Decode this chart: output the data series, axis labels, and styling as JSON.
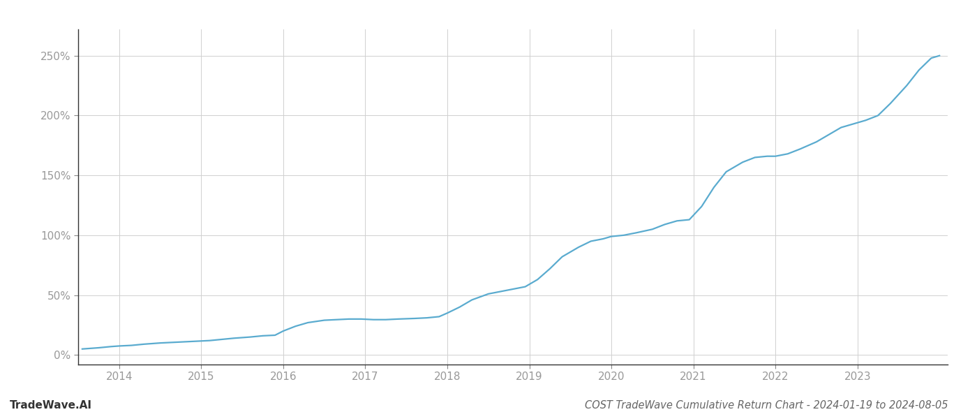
{
  "title": "COST TradeWave Cumulative Return Chart - 2024-01-19 to 2024-08-05",
  "watermark": "TradeWave.AI",
  "x_years": [
    2014,
    2015,
    2016,
    2017,
    2018,
    2019,
    2020,
    2021,
    2022,
    2023
  ],
  "x_values": [
    2013.55,
    2013.75,
    2013.9,
    2014.0,
    2014.15,
    2014.3,
    2014.5,
    2014.65,
    2014.8,
    2014.95,
    2015.1,
    2015.25,
    2015.4,
    2015.6,
    2015.75,
    2015.9,
    2016.0,
    2016.15,
    2016.3,
    2016.5,
    2016.65,
    2016.8,
    2016.95,
    2017.1,
    2017.25,
    2017.4,
    2017.6,
    2017.75,
    2017.9,
    2018.0,
    2018.15,
    2018.3,
    2018.5,
    2018.65,
    2018.8,
    2018.95,
    2019.1,
    2019.25,
    2019.4,
    2019.6,
    2019.75,
    2019.9,
    2020.0,
    2020.15,
    2020.3,
    2020.5,
    2020.65,
    2020.8,
    2020.95,
    2021.1,
    2021.25,
    2021.4,
    2021.6,
    2021.75,
    2021.9,
    2022.0,
    2022.15,
    2022.3,
    2022.5,
    2022.65,
    2022.8,
    2022.95,
    2023.1,
    2023.25,
    2023.4,
    2023.6,
    2023.75,
    2023.9,
    2024.0
  ],
  "y_values": [
    5,
    6,
    7,
    7.5,
    8,
    9,
    10,
    10.5,
    11,
    11.5,
    12,
    13,
    14,
    15,
    16,
    16.5,
    20,
    24,
    27,
    29,
    29.5,
    30,
    30,
    29.5,
    29.5,
    30,
    30.5,
    31,
    32,
    35,
    40,
    46,
    51,
    53,
    55,
    57,
    63,
    72,
    82,
    90,
    95,
    97,
    99,
    100,
    102,
    105,
    109,
    112,
    113,
    124,
    140,
    153,
    161,
    165,
    166,
    166,
    168,
    172,
    178,
    184,
    190,
    193,
    196,
    200,
    210,
    225,
    238,
    248,
    250
  ],
  "line_color": "#5aabcf",
  "line_width": 1.6,
  "background_color": "#ffffff",
  "grid_color": "#d0d0d0",
  "ytick_labels": [
    "0%",
    "50%",
    "100%",
    "150%",
    "200%",
    "250%"
  ],
  "ytick_values": [
    0,
    50,
    100,
    150,
    200,
    250
  ],
  "ylim": [
    -8,
    272
  ],
  "xlim": [
    2013.5,
    2024.1
  ],
  "tick_color": "#999999",
  "title_color": "#666666",
  "title_fontsize": 10.5,
  "watermark_fontsize": 11,
  "tick_fontsize": 11
}
